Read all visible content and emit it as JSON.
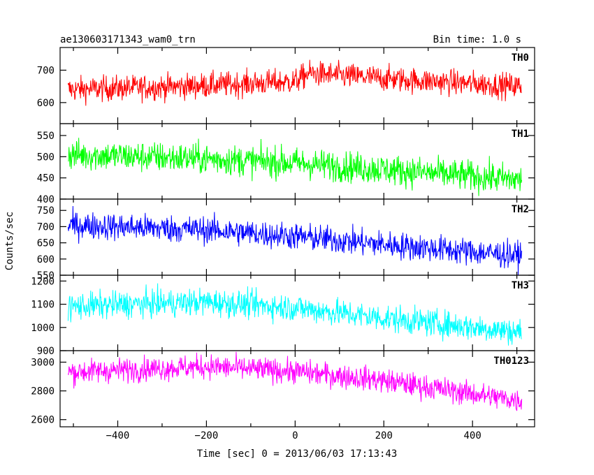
{
  "header": {
    "title": "ae130603171343_wam0_trn",
    "bin_time": "Bin time: 1.0 s"
  },
  "chart_data": {
    "type": "line",
    "title": "ae130603171343_wam0_trn",
    "xlabel": "Time [sec] 0 = 2013/06/03 17:13:43",
    "ylabel": "Counts/sec",
    "xlim": [
      -530,
      540
    ],
    "x_ticks": [
      -400,
      -200,
      0,
      200,
      400
    ],
    "x_tick_labels": [
      "−400",
      "−200",
      "0",
      "200",
      "400"
    ],
    "x_step": 1.0,
    "x_range": [
      -512,
      511
    ],
    "panels": [
      {
        "name": "TH0",
        "color": "#ff0000",
        "ylim": [
          535,
          770
        ],
        "yticks": [
          600,
          700
        ],
        "ytick_labels": [
          "600",
          "700"
        ],
        "trend": [
          [
            -512,
            640
          ],
          [
            -250,
            650
          ],
          [
            0,
            665
          ],
          [
            30,
            690
          ],
          [
            250,
            670
          ],
          [
            511,
            650
          ]
        ],
        "noise": 28
      },
      {
        "name": "TH1",
        "color": "#00ff00",
        "ylim": [
          400,
          578
        ],
        "yticks": [
          400,
          450,
          500,
          550
        ],
        "ytick_labels": [
          "400",
          "450",
          "500",
          "550"
        ],
        "trend": [
          [
            -512,
            505
          ],
          [
            -200,
            495
          ],
          [
            0,
            485
          ],
          [
            200,
            470
          ],
          [
            511,
            445
          ]
        ],
        "noise": 26
      },
      {
        "name": "TH2",
        "color": "#0000ff",
        "ylim": [
          550,
          785
        ],
        "yticks": [
          550,
          600,
          650,
          700,
          750
        ],
        "ytick_labels": [
          "550",
          "600",
          "650",
          "700",
          "750"
        ],
        "trend": [
          [
            -512,
            705
          ],
          [
            -200,
            690
          ],
          [
            0,
            670
          ],
          [
            200,
            645
          ],
          [
            511,
            610
          ]
        ],
        "noise": 30
      },
      {
        "name": "TH3",
        "color": "#00ffff",
        "ylim": [
          900,
          1225
        ],
        "yticks": [
          900,
          1000,
          1100,
          1200
        ],
        "ytick_labels": [
          "900",
          "1000",
          "1100",
          "1200"
        ],
        "trend": [
          [
            -512,
            1090
          ],
          [
            -200,
            1110
          ],
          [
            0,
            1085
          ],
          [
            200,
            1040
          ],
          [
            511,
            980
          ]
        ],
        "noise": 42
      },
      {
        "name": "TH0123",
        "color": "#ff00ff",
        "ylim": [
          2550,
          3080
        ],
        "yticks": [
          2600,
          2800,
          3000
        ],
        "ytick_labels": [
          "2600",
          "2800",
          "3000"
        ],
        "trend": [
          [
            -512,
            2930
          ],
          [
            -200,
            2970
          ],
          [
            0,
            2935
          ],
          [
            180,
            2880
          ],
          [
            511,
            2730
          ]
        ],
        "noise": 60
      }
    ]
  }
}
